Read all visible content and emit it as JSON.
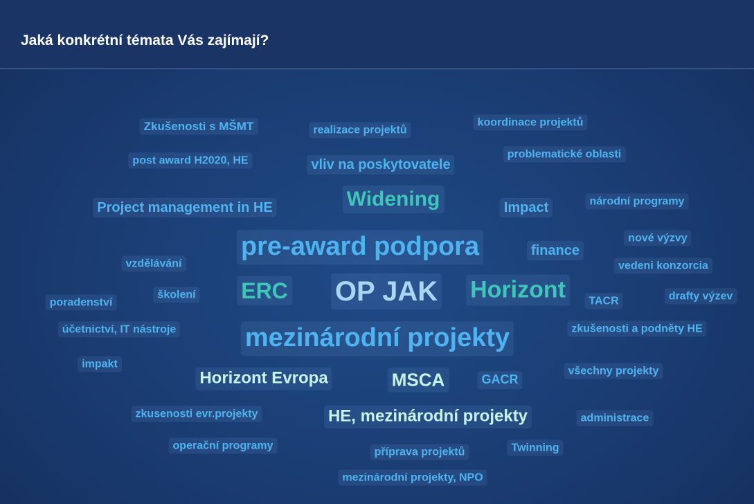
{
  "header": {
    "title": "Jaká konkrétní témata Vás zajímají?"
  },
  "words": [
    "Zkušenosti s MŠMT",
    "realizace projektů",
    "koordinace projektů",
    "post award H2020, HE",
    "vliv na poskytovatele",
    "problematické oblasti",
    "Widening",
    "Project management in HE",
    "Impact",
    "národní programy",
    "pre-award podpora",
    "finance",
    "nové výzvy",
    "vzdělávání",
    "vedeni konzorcia",
    "ERC",
    "OP JAK",
    "Horizont",
    "školení",
    "poradenství",
    "TACR",
    "drafty výzev",
    "účetnictví, IT nástroje",
    "mezinárodní projekty",
    "zkušenosti a podněty HE",
    "impakt",
    "Horizont Evropa",
    "MSCA",
    "GACR",
    "všechny projekty",
    "zkusenosti evr.projekty",
    "HE, mezinárodní projekty",
    "administrace",
    "operační programy",
    "příprava projektů",
    "Twinning",
    "mezinárodní projekty, NPO"
  ]
}
